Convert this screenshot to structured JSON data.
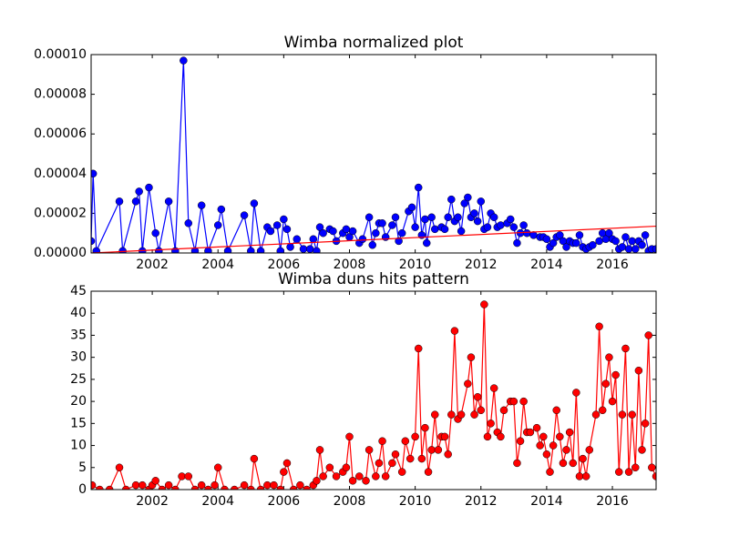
{
  "chart_data": [
    {
      "type": "line",
      "title": "Wimba normalized plot",
      "xlim": [
        2000.14,
        2017.33
      ],
      "xticks": [
        2002,
        2004,
        2006,
        2008,
        2010,
        2012,
        2014,
        2016
      ],
      "ylim": [
        0,
        0.0001
      ],
      "yticks": [
        {
          "value": 0,
          "label": "0.00000"
        },
        {
          "value": 2e-05,
          "label": "0.00002"
        },
        {
          "value": 4e-05,
          "label": "0.00004"
        },
        {
          "value": 6e-05,
          "label": "0.00006"
        },
        {
          "value": 8e-05,
          "label": "0.00008"
        },
        {
          "value": 0.0001,
          "label": "0.00010"
        }
      ],
      "series": [
        {
          "color": "#0000ff",
          "markers": true,
          "x": [
            2000.14,
            2000.2,
            2000.3,
            2001.0,
            2001.1,
            2001.5,
            2001.6,
            2001.7,
            2001.9,
            2002.1,
            2002.2,
            2002.5,
            2002.7,
            2002.95,
            2003.1,
            2003.3,
            2003.5,
            2003.7,
            2004.0,
            2004.1,
            2004.3,
            2004.8,
            2005.0,
            2005.1,
            2005.3,
            2005.5,
            2005.6,
            2005.8,
            2005.9,
            2006.0,
            2006.1,
            2006.2,
            2006.4,
            2006.6,
            2006.8,
            2006.9,
            2007.0,
            2007.1,
            2007.2,
            2007.4,
            2007.5,
            2007.6,
            2007.8,
            2007.9,
            2008.0,
            2008.1,
            2008.3,
            2008.4,
            2008.6,
            2008.7,
            2008.8,
            2008.9,
            2009.0,
            2009.1,
            2009.3,
            2009.4,
            2009.5,
            2009.6,
            2009.8,
            2009.9,
            2010.0,
            2010.1,
            2010.2,
            2010.3,
            2010.35,
            2010.5,
            2010.6,
            2010.8,
            2010.9,
            2011.0,
            2011.1,
            2011.2,
            2011.3,
            2011.4,
            2011.5,
            2011.6,
            2011.7,
            2011.8,
            2011.9,
            2012.0,
            2012.1,
            2012.2,
            2012.3,
            2012.4,
            2012.5,
            2012.6,
            2012.8,
            2012.9,
            2013.0,
            2013.1,
            2013.2,
            2013.3,
            2013.4,
            2013.6,
            2013.8,
            2013.9,
            2014.0,
            2014.1,
            2014.2,
            2014.3,
            2014.4,
            2014.5,
            2014.6,
            2014.7,
            2014.8,
            2014.9,
            2015.0,
            2015.1,
            2015.2,
            2015.3,
            2015.4,
            2015.6,
            2015.7,
            2015.8,
            2015.9,
            2016.0,
            2016.1,
            2016.2,
            2016.3,
            2016.4,
            2016.5,
            2016.6,
            2016.7,
            2016.8,
            2016.9,
            2017.0,
            2017.1,
            2017.2,
            2017.33
          ],
          "values": [
            6e-06,
            4e-05,
            1e-06,
            2.6e-05,
            1e-06,
            2.6e-05,
            3.1e-05,
            1e-06,
            3.3e-05,
            1e-05,
            1e-06,
            2.6e-05,
            1e-06,
            9.7e-05,
            1.5e-05,
            1e-06,
            2.4e-05,
            1e-06,
            1.4e-05,
            2.2e-05,
            1e-06,
            1.9e-05,
            1e-06,
            2.5e-05,
            1e-06,
            1.3e-05,
            1.1e-05,
            1.4e-05,
            1e-06,
            1.7e-05,
            1.2e-05,
            3e-06,
            7e-06,
            2e-06,
            2e-06,
            7e-06,
            1e-06,
            1.3e-05,
            1e-05,
            1.2e-05,
            1.1e-05,
            6e-06,
            1e-05,
            1.2e-05,
            8e-06,
            1.1e-05,
            5e-06,
            7e-06,
            1.8e-05,
            4e-06,
            1e-05,
            1.5e-05,
            1.5e-05,
            8e-06,
            1.4e-05,
            1.8e-05,
            6e-06,
            1e-05,
            2.1e-05,
            2.3e-05,
            1.3e-05,
            3.3e-05,
            9e-06,
            1.7e-05,
            5e-06,
            1.8e-05,
            1.2e-05,
            1.3e-05,
            1.2e-05,
            1.8e-05,
            2.7e-05,
            1.6e-05,
            1.8e-05,
            1.1e-05,
            2.5e-05,
            2.8e-05,
            1.8e-05,
            2e-05,
            1.6e-05,
            2.6e-05,
            1.2e-05,
            1.3e-05,
            2e-05,
            1.8e-05,
            1.3e-05,
            1.4e-05,
            1.5e-05,
            1.7e-05,
            1.3e-05,
            5e-06,
            1e-05,
            1.4e-05,
            1e-05,
            9e-06,
            8e-06,
            8e-06,
            7e-06,
            3e-06,
            5e-06,
            8e-06,
            9e-06,
            6e-06,
            3e-06,
            6e-06,
            5e-06,
            5e-06,
            9e-06,
            3e-06,
            2e-06,
            3e-06,
            4e-06,
            6e-06,
            1e-05,
            7e-06,
            1e-05,
            7e-06,
            6e-06,
            2e-06,
            3e-06,
            8e-06,
            2e-06,
            6e-06,
            2e-06,
            6e-06,
            4e-06,
            9e-06,
            1e-06,
            2e-06,
            2e-06
          ]
        },
        {
          "color": "#ff0000",
          "markers": false,
          "x": [
            2000.14,
            2017.33
          ],
          "values": [
            0,
            1.35e-05
          ]
        }
      ]
    },
    {
      "type": "line",
      "title": "Wimba duns hits pattern",
      "xlim": [
        2000.14,
        2017.33
      ],
      "xticks": [
        2002,
        2004,
        2006,
        2008,
        2010,
        2012,
        2014,
        2016
      ],
      "ylim": [
        0,
        45
      ],
      "yticks": [
        0,
        5,
        10,
        15,
        20,
        25,
        30,
        35,
        40,
        45
      ],
      "series": [
        {
          "color": "#ff0000",
          "markers": true,
          "x": [
            2000.17,
            2000.4,
            2000.7,
            2001.0,
            2001.2,
            2001.5,
            2001.7,
            2001.9,
            2002.0,
            2002.1,
            2002.3,
            2002.5,
            2002.7,
            2002.9,
            2003.1,
            2003.3,
            2003.5,
            2003.7,
            2003.9,
            2004.0,
            2004.2,
            2004.5,
            2004.8,
            2005.0,
            2005.1,
            2005.3,
            2005.5,
            2005.7,
            2005.9,
            2006.0,
            2006.1,
            2006.3,
            2006.5,
            2006.7,
            2006.9,
            2007.0,
            2007.1,
            2007.2,
            2007.4,
            2007.6,
            2007.8,
            2007.9,
            2008.0,
            2008.1,
            2008.3,
            2008.5,
            2008.6,
            2008.8,
            2008.9,
            2009.0,
            2009.1,
            2009.3,
            2009.4,
            2009.6,
            2009.7,
            2009.85,
            2010.0,
            2010.1,
            2010.2,
            2010.3,
            2010.4,
            2010.5,
            2010.6,
            2010.7,
            2010.8,
            2010.9,
            2011.0,
            2011.1,
            2011.2,
            2011.3,
            2011.4,
            2011.6,
            2011.7,
            2011.8,
            2011.9,
            2012.0,
            2012.1,
            2012.2,
            2012.3,
            2012.4,
            2012.5,
            2012.6,
            2012.7,
            2012.9,
            2013.0,
            2013.1,
            2013.2,
            2013.3,
            2013.4,
            2013.5,
            2013.7,
            2013.8,
            2013.9,
            2014.0,
            2014.1,
            2014.2,
            2014.3,
            2014.4,
            2014.5,
            2014.6,
            2014.7,
            2014.8,
            2014.9,
            2015.0,
            2015.1,
            2015.2,
            2015.3,
            2015.5,
            2015.6,
            2015.7,
            2015.8,
            2015.9,
            2016.0,
            2016.1,
            2016.2,
            2016.3,
            2016.4,
            2016.5,
            2016.6,
            2016.7,
            2016.8,
            2016.9,
            2017.0,
            2017.1,
            2017.2,
            2017.33
          ],
          "values": [
            1,
            0,
            0,
            5,
            0,
            1,
            1,
            0,
            1,
            2,
            0,
            1,
            0,
            3,
            3,
            0,
            1,
            0,
            1,
            5,
            0,
            0,
            1,
            0,
            7,
            0,
            1,
            1,
            0,
            4,
            6,
            0,
            1,
            0,
            1,
            2,
            9,
            3,
            5,
            3,
            4,
            5,
            12,
            2,
            3,
            2,
            9,
            3,
            6,
            11,
            3,
            6,
            8,
            4,
            11,
            7,
            12,
            32,
            7,
            14,
            4,
            9,
            17,
            9,
            12,
            12,
            8,
            17,
            36,
            16,
            17,
            24,
            30,
            17,
            21,
            18,
            42,
            12,
            15,
            23,
            13,
            12,
            18,
            20,
            20,
            6,
            11,
            20,
            13,
            13,
            14,
            10,
            12,
            8,
            4,
            10,
            18,
            12,
            6,
            9,
            13,
            6,
            22,
            3,
            7,
            3,
            9,
            17,
            37,
            18,
            24,
            30,
            20,
            26,
            4,
            17,
            32,
            4,
            17,
            5,
            27,
            9,
            15,
            35,
            5,
            3
          ]
        }
      ]
    }
  ]
}
